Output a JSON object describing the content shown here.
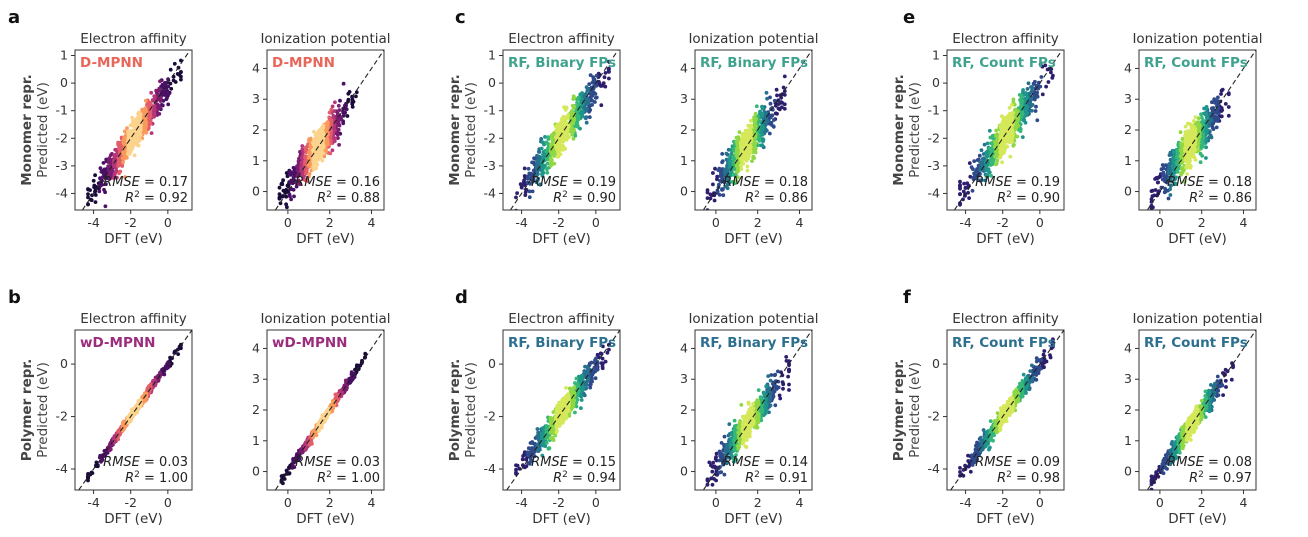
{
  "figure": {
    "row_labels": {
      "top": {
        "bold": "Monomer repr.",
        "normal": "Predicted (eV)"
      },
      "bottom": {
        "bold": "Polymer repr.",
        "normal": "Predicted (eV)"
      }
    },
    "x_axis_label": "DFT (eV)",
    "colors": {
      "dmpnn_label": "#e8665a",
      "wdmpnn_label": "#9b2c7e",
      "rf_top_label": "#3fa28f",
      "rf_bottom_label": "#2c6f8e",
      "magma": [
        "#1b0b3a",
        "#4a1066",
        "#7c1d6f",
        "#b5367a",
        "#e35d6a",
        "#f99a5c",
        "#fcd38c"
      ],
      "viridis": [
        "#2d1e6e",
        "#2e4a8a",
        "#26718e",
        "#1f958b",
        "#35b779",
        "#8fd744",
        "#d4e85a"
      ]
    }
  },
  "chart_data": [
    {
      "panel_letter": "a",
      "type": "scatter",
      "title": "Electron affinity",
      "model": "D-MPNN",
      "rmse_label": "RMSE",
      "rmse": "0.17",
      "r2_label": "R",
      "r2_sup": "2",
      "r2": "0.92",
      "xlabel": "DFT (eV)",
      "ylabel": "Predicted (eV)",
      "xlim": [
        -5,
        1.3
      ],
      "ylim": [
        -4.6,
        1.2
      ],
      "xticks": [
        -4,
        -2,
        0
      ],
      "yticks": [
        -4,
        -3,
        -2,
        -1,
        0,
        1
      ],
      "colormap": "magma",
      "trend": {
        "slope": 0.92,
        "intercept": -0.2,
        "x_range": [
          -4.2,
          0.6
        ],
        "scatter": 0.28
      }
    },
    {
      "panel_letter": "",
      "type": "scatter",
      "title": "Ionization potential",
      "model": "D-MPNN",
      "rmse_label": "RMSE",
      "rmse": "0.16",
      "r2_label": "R",
      "r2_sup": "2",
      "r2": "0.88",
      "xlabel": "DFT (eV)",
      "ylabel": "",
      "xlim": [
        -1,
        4.6
      ],
      "ylim": [
        -0.6,
        4.6
      ],
      "xticks": [
        0,
        2,
        4
      ],
      "yticks": [
        0,
        1,
        2,
        3,
        4
      ],
      "colormap": "magma",
      "trend": {
        "slope": 0.88,
        "intercept": 0.2,
        "x_range": [
          -0.3,
          3.2
        ],
        "scatter": 0.28
      }
    },
    {
      "panel_letter": "c",
      "type": "scatter",
      "title": "Electron affinity",
      "model": "RF, Binary FPs",
      "rmse_label": "RMSE",
      "rmse": "0.19",
      "r2_label": "R",
      "r2_sup": "2",
      "r2": "0.90",
      "xlabel": "DFT (eV)",
      "ylabel": "Predicted (eV)",
      "xlim": [
        -5,
        1.3
      ],
      "ylim": [
        -4.6,
        1.2
      ],
      "xticks": [
        -4,
        -2,
        0
      ],
      "yticks": [
        -4,
        -3,
        -2,
        -1,
        0,
        1
      ],
      "colormap": "viridis",
      "trend": {
        "slope": 0.9,
        "intercept": -0.2,
        "x_range": [
          -4.2,
          0.6
        ],
        "scatter": 0.3
      }
    },
    {
      "panel_letter": "",
      "type": "scatter",
      "title": "Ionization potential",
      "model": "RF, Binary FPs",
      "rmse_label": "RMSE",
      "rmse": "0.18",
      "r2_label": "R",
      "r2_sup": "2",
      "r2": "0.86",
      "xlabel": "DFT (eV)",
      "ylabel": "",
      "xlim": [
        -1,
        4.6
      ],
      "ylim": [
        -0.6,
        4.6
      ],
      "xticks": [
        0,
        2,
        4
      ],
      "yticks": [
        0,
        1,
        2,
        3,
        4
      ],
      "colormap": "viridis",
      "trend": {
        "slope": 0.86,
        "intercept": 0.25,
        "x_range": [
          -0.3,
          3.2
        ],
        "scatter": 0.3
      }
    },
    {
      "panel_letter": "e",
      "type": "scatter",
      "title": "Electron affinity",
      "model": "RF, Count FPs",
      "rmse_label": "RMSE",
      "rmse": "0.19",
      "r2_label": "R",
      "r2_sup": "2",
      "r2": "0.90",
      "xlabel": "DFT (eV)",
      "ylabel": "Predicted (eV)",
      "xlim": [
        -5,
        1.3
      ],
      "ylim": [
        -4.6,
        1.2
      ],
      "xticks": [
        -4,
        -2,
        0
      ],
      "yticks": [
        -4,
        -3,
        -2,
        -1,
        0,
        1
      ],
      "colormap": "viridis",
      "trend": {
        "slope": 0.9,
        "intercept": -0.2,
        "x_range": [
          -4.2,
          0.6
        ],
        "scatter": 0.3
      }
    },
    {
      "panel_letter": "",
      "type": "scatter",
      "title": "Ionization potential",
      "model": "RF, Count FPs",
      "rmse_label": "RMSE",
      "rmse": "0.18",
      "r2_label": "R",
      "r2_sup": "2",
      "r2": "0.86",
      "xlabel": "DFT (eV)",
      "ylabel": "",
      "xlim": [
        -1,
        4.6
      ],
      "ylim": [
        -0.6,
        4.6
      ],
      "xticks": [
        0,
        2,
        4
      ],
      "yticks": [
        0,
        1,
        2,
        3,
        4
      ],
      "colormap": "viridis",
      "trend": {
        "slope": 0.86,
        "intercept": 0.25,
        "x_range": [
          -0.3,
          3.2
        ],
        "scatter": 0.3
      }
    },
    {
      "panel_letter": "b",
      "type": "scatter",
      "title": "Electron affinity",
      "model": "wD-MPNN",
      "rmse_label": "RMSE",
      "rmse": "0.03",
      "r2_label": "R",
      "r2_sup": "2",
      "r2": "1.00",
      "xlabel": "DFT (eV)",
      "ylabel": "Predicted (eV)",
      "xlim": [
        -5,
        1.3
      ],
      "ylim": [
        -4.8,
        1.3
      ],
      "xticks": [
        -4,
        -2,
        0
      ],
      "yticks": [
        -4,
        -2,
        0
      ],
      "colormap": "magma",
      "trend": {
        "slope": 1.0,
        "intercept": 0.0,
        "x_range": [
          -4.2,
          0.6
        ],
        "scatter": 0.07
      }
    },
    {
      "panel_letter": "",
      "type": "scatter",
      "title": "Ionization potential",
      "model": "wD-MPNN",
      "rmse_label": "RMSE",
      "rmse": "0.03",
      "r2_label": "R",
      "r2_sup": "2",
      "r2": "1.00",
      "xlabel": "DFT (eV)",
      "ylabel": "",
      "xlim": [
        -1,
        4.6
      ],
      "ylim": [
        -0.6,
        4.6
      ],
      "xticks": [
        0,
        2,
        4
      ],
      "yticks": [
        0,
        1,
        2,
        3,
        4
      ],
      "colormap": "magma",
      "trend": {
        "slope": 1.0,
        "intercept": 0.0,
        "x_range": [
          -0.2,
          3.6
        ],
        "scatter": 0.07
      }
    },
    {
      "panel_letter": "d",
      "type": "scatter",
      "title": "Electron affinity",
      "model": "RF, Binary FPs",
      "rmse_label": "RMSE",
      "rmse": "0.15",
      "r2_label": "R",
      "r2_sup": "2",
      "r2": "0.94",
      "xlabel": "DFT (eV)",
      "ylabel": "Predicted (eV)",
      "xlim": [
        -5,
        1.3
      ],
      "ylim": [
        -4.8,
        1.3
      ],
      "xticks": [
        -4,
        -2,
        0
      ],
      "yticks": [
        -4,
        -2,
        0
      ],
      "colormap": "viridis",
      "trend": {
        "slope": 0.94,
        "intercept": -0.1,
        "x_range": [
          -4.2,
          0.6
        ],
        "scatter": 0.24
      }
    },
    {
      "panel_letter": "",
      "type": "scatter",
      "title": "Ionization potential",
      "model": "RF, Binary FPs",
      "rmse_label": "RMSE",
      "rmse": "0.14",
      "r2_label": "R",
      "r2_sup": "2",
      "r2": "0.91",
      "xlabel": "DFT (eV)",
      "ylabel": "",
      "xlim": [
        -1,
        4.6
      ],
      "ylim": [
        -0.6,
        4.6
      ],
      "xticks": [
        0,
        2,
        4
      ],
      "yticks": [
        0,
        1,
        2,
        3,
        4
      ],
      "colormap": "viridis",
      "trend": {
        "slope": 0.91,
        "intercept": 0.15,
        "x_range": [
          -0.3,
          3.4
        ],
        "scatter": 0.24
      }
    },
    {
      "panel_letter": "f",
      "type": "scatter",
      "title": "Electron affinity",
      "model": "RF, Count FPs",
      "rmse_label": "RMSE",
      "rmse": "0.09",
      "r2_label": "R",
      "r2_sup": "2",
      "r2": "0.98",
      "xlabel": "DFT (eV)",
      "ylabel": "Predicted (eV)",
      "xlim": [
        -5,
        1.3
      ],
      "ylim": [
        -4.8,
        1.3
      ],
      "xticks": [
        -4,
        -2,
        0
      ],
      "yticks": [
        -4,
        -2,
        0
      ],
      "colormap": "viridis",
      "trend": {
        "slope": 0.98,
        "intercept": -0.05,
        "x_range": [
          -4.2,
          0.6
        ],
        "scatter": 0.16
      }
    },
    {
      "panel_letter": "",
      "type": "scatter",
      "title": "Ionization potential",
      "model": "RF, Count FPs",
      "rmse_label": "RMSE",
      "rmse": "0.08",
      "r2_label": "R",
      "r2_sup": "2",
      "r2": "0.97",
      "xlabel": "DFT (eV)",
      "ylabel": "",
      "xlim": [
        -1,
        4.6
      ],
      "ylim": [
        -0.6,
        4.6
      ],
      "xticks": [
        0,
        2,
        4
      ],
      "yticks": [
        0,
        1,
        2,
        3,
        4
      ],
      "colormap": "viridis",
      "trend": {
        "slope": 0.97,
        "intercept": 0.05,
        "x_range": [
          -0.3,
          3.4
        ],
        "scatter": 0.16
      }
    }
  ]
}
